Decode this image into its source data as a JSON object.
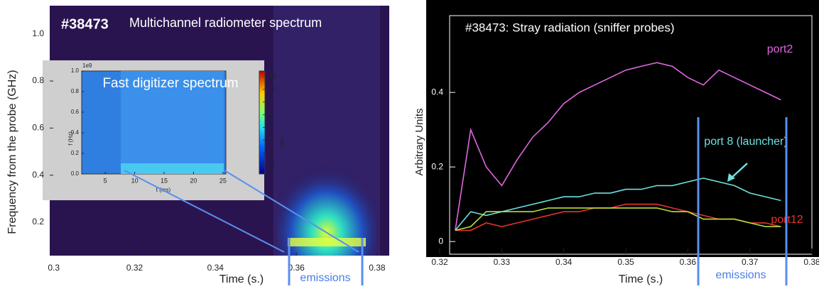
{
  "chart_data": [
    {
      "type": "spectrogram",
      "title": "#38473",
      "subtitle": "Multichannel radiometer spectrum",
      "x_label": "Time (s.)",
      "y_label": "Frequency from the probe (GHz)",
      "xlim": [
        0.299,
        0.383
      ],
      "xticks": [
        0.3,
        0.32,
        0.34,
        0.36,
        0.38
      ],
      "ylim": [
        0.058,
        1.12
      ],
      "yticks": [
        0.2,
        0.4,
        0.6,
        0.8,
        {
          "value": 1,
          "label": "1.0"
        }
      ],
      "annotation": "emissions",
      "inset": {
        "title": "Fast digitizer spectrum",
        "x_label": "t (ms)",
        "y_label": "f (Hz)",
        "scale_label": "1e9",
        "xlim": [
          1,
          25.5
        ],
        "xticks": [
          5,
          10,
          15,
          20,
          25
        ],
        "ylim": [
          0,
          1
        ],
        "yticks": [
          {
            "value": 0,
            "label": "0.0"
          },
          0.2,
          0.4,
          0.6,
          0.8,
          {
            "value": 1,
            "label": "1.0"
          }
        ],
        "colorbar_label": "(dB)",
        "clim": [
          -3.34,
          12.9
        ],
        "cticks": [
          -2,
          0,
          2,
          4,
          6,
          8,
          10,
          12
        ]
      }
    },
    {
      "type": "line",
      "title": "#38473: Stray radiation (sniffer probes)",
      "x_label": "Time (s.)",
      "y_label": "Arbitrary Units",
      "xlim": [
        0.3216,
        0.38
      ],
      "xticks": [
        0.32,
        0.33,
        0.34,
        0.35,
        0.36,
        0.37,
        0.38
      ],
      "ylim": [
        -0.034,
        0.606
      ],
      "yticks": [
        0,
        0.2,
        0.4
      ],
      "annotation": "emissions",
      "x": [
        0.3225,
        0.325,
        0.3275,
        0.33,
        0.3325,
        0.335,
        0.3375,
        0.34,
        0.3425,
        0.345,
        0.3475,
        0.35,
        0.3525,
        0.355,
        0.3575,
        0.36,
        0.3625,
        0.365,
        0.3675,
        0.37,
        0.3725,
        0.375
      ],
      "series": [
        {
          "name": "port2",
          "color": "#e066e0",
          "values": [
            0.03,
            0.3,
            0.2,
            0.15,
            0.22,
            0.28,
            0.32,
            0.37,
            0.4,
            0.42,
            0.44,
            0.46,
            0.47,
            0.48,
            0.47,
            0.44,
            0.42,
            0.46,
            0.44,
            0.42,
            0.4,
            0.38
          ]
        },
        {
          "name": "port 8 (launcher)",
          "color": "#6fe0e0",
          "values": [
            0.03,
            0.08,
            0.07,
            0.08,
            0.09,
            0.1,
            0.11,
            0.12,
            0.12,
            0.13,
            0.13,
            0.14,
            0.14,
            0.15,
            0.15,
            0.16,
            0.17,
            0.16,
            0.15,
            0.13,
            0.12,
            0.11
          ]
        },
        {
          "name": "port12",
          "color": "#e8342a",
          "values": [
            0.03,
            0.03,
            0.05,
            0.04,
            0.05,
            0.06,
            0.07,
            0.08,
            0.08,
            0.09,
            0.09,
            0.1,
            0.1,
            0.1,
            0.09,
            0.08,
            0.07,
            0.06,
            0.06,
            0.05,
            0.05,
            0.04
          ]
        },
        {
          "color": "#b8e03a",
          "values": [
            0.03,
            0.04,
            0.08,
            0.08,
            0.08,
            0.08,
            0.09,
            0.09,
            0.09,
            0.09,
            0.09,
            0.09,
            0.09,
            0.09,
            0.08,
            0.08,
            0.06,
            0.06,
            0.06,
            0.05,
            0.04,
            0.04
          ]
        }
      ]
    }
  ]
}
